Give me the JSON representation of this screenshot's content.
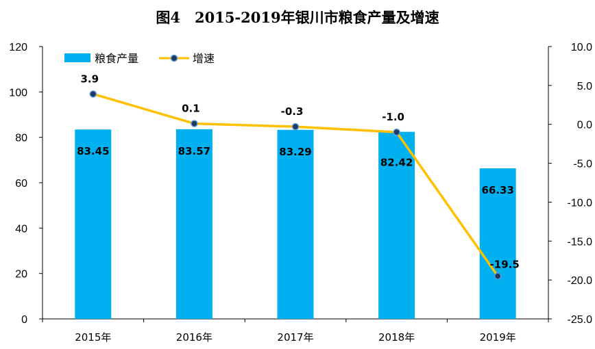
{
  "chart_data": {
    "type": "bar",
    "title": "图4　2015-2019年银川市粮食产量及增速",
    "categories": [
      "2015年",
      "2016年",
      "2017年",
      "2018年",
      "2019年"
    ],
    "series": [
      {
        "name": "粮食产量",
        "type": "bar",
        "axis": "left",
        "values": [
          83.45,
          83.57,
          83.29,
          82.42,
          66.33
        ],
        "labels": [
          "83.45",
          "83.57",
          "83.29",
          "82.42",
          "66.33"
        ],
        "color": "#00B0F0"
      },
      {
        "name": "增速",
        "type": "line",
        "axis": "right",
        "values": [
          3.9,
          0.1,
          -0.3,
          -1.0,
          -19.5
        ],
        "labels": [
          "3.9",
          "0.1",
          "-0.3",
          "-1.0",
          "-19.5"
        ],
        "color": "#FFC000",
        "marker_color": "#1F3864"
      }
    ],
    "y_left": {
      "range": [
        0,
        120
      ],
      "ticks": [
        "0",
        "20",
        "40",
        "60",
        "80",
        "100",
        "120"
      ]
    },
    "y_right": {
      "range": [
        -25,
        10
      ],
      "ticks": [
        "-25.0",
        "-20.0",
        "-15.0",
        "-10.0",
        "-5.0",
        "0.0",
        "5.0",
        "10.0"
      ]
    },
    "legend_position": "top-left",
    "grid": false
  }
}
